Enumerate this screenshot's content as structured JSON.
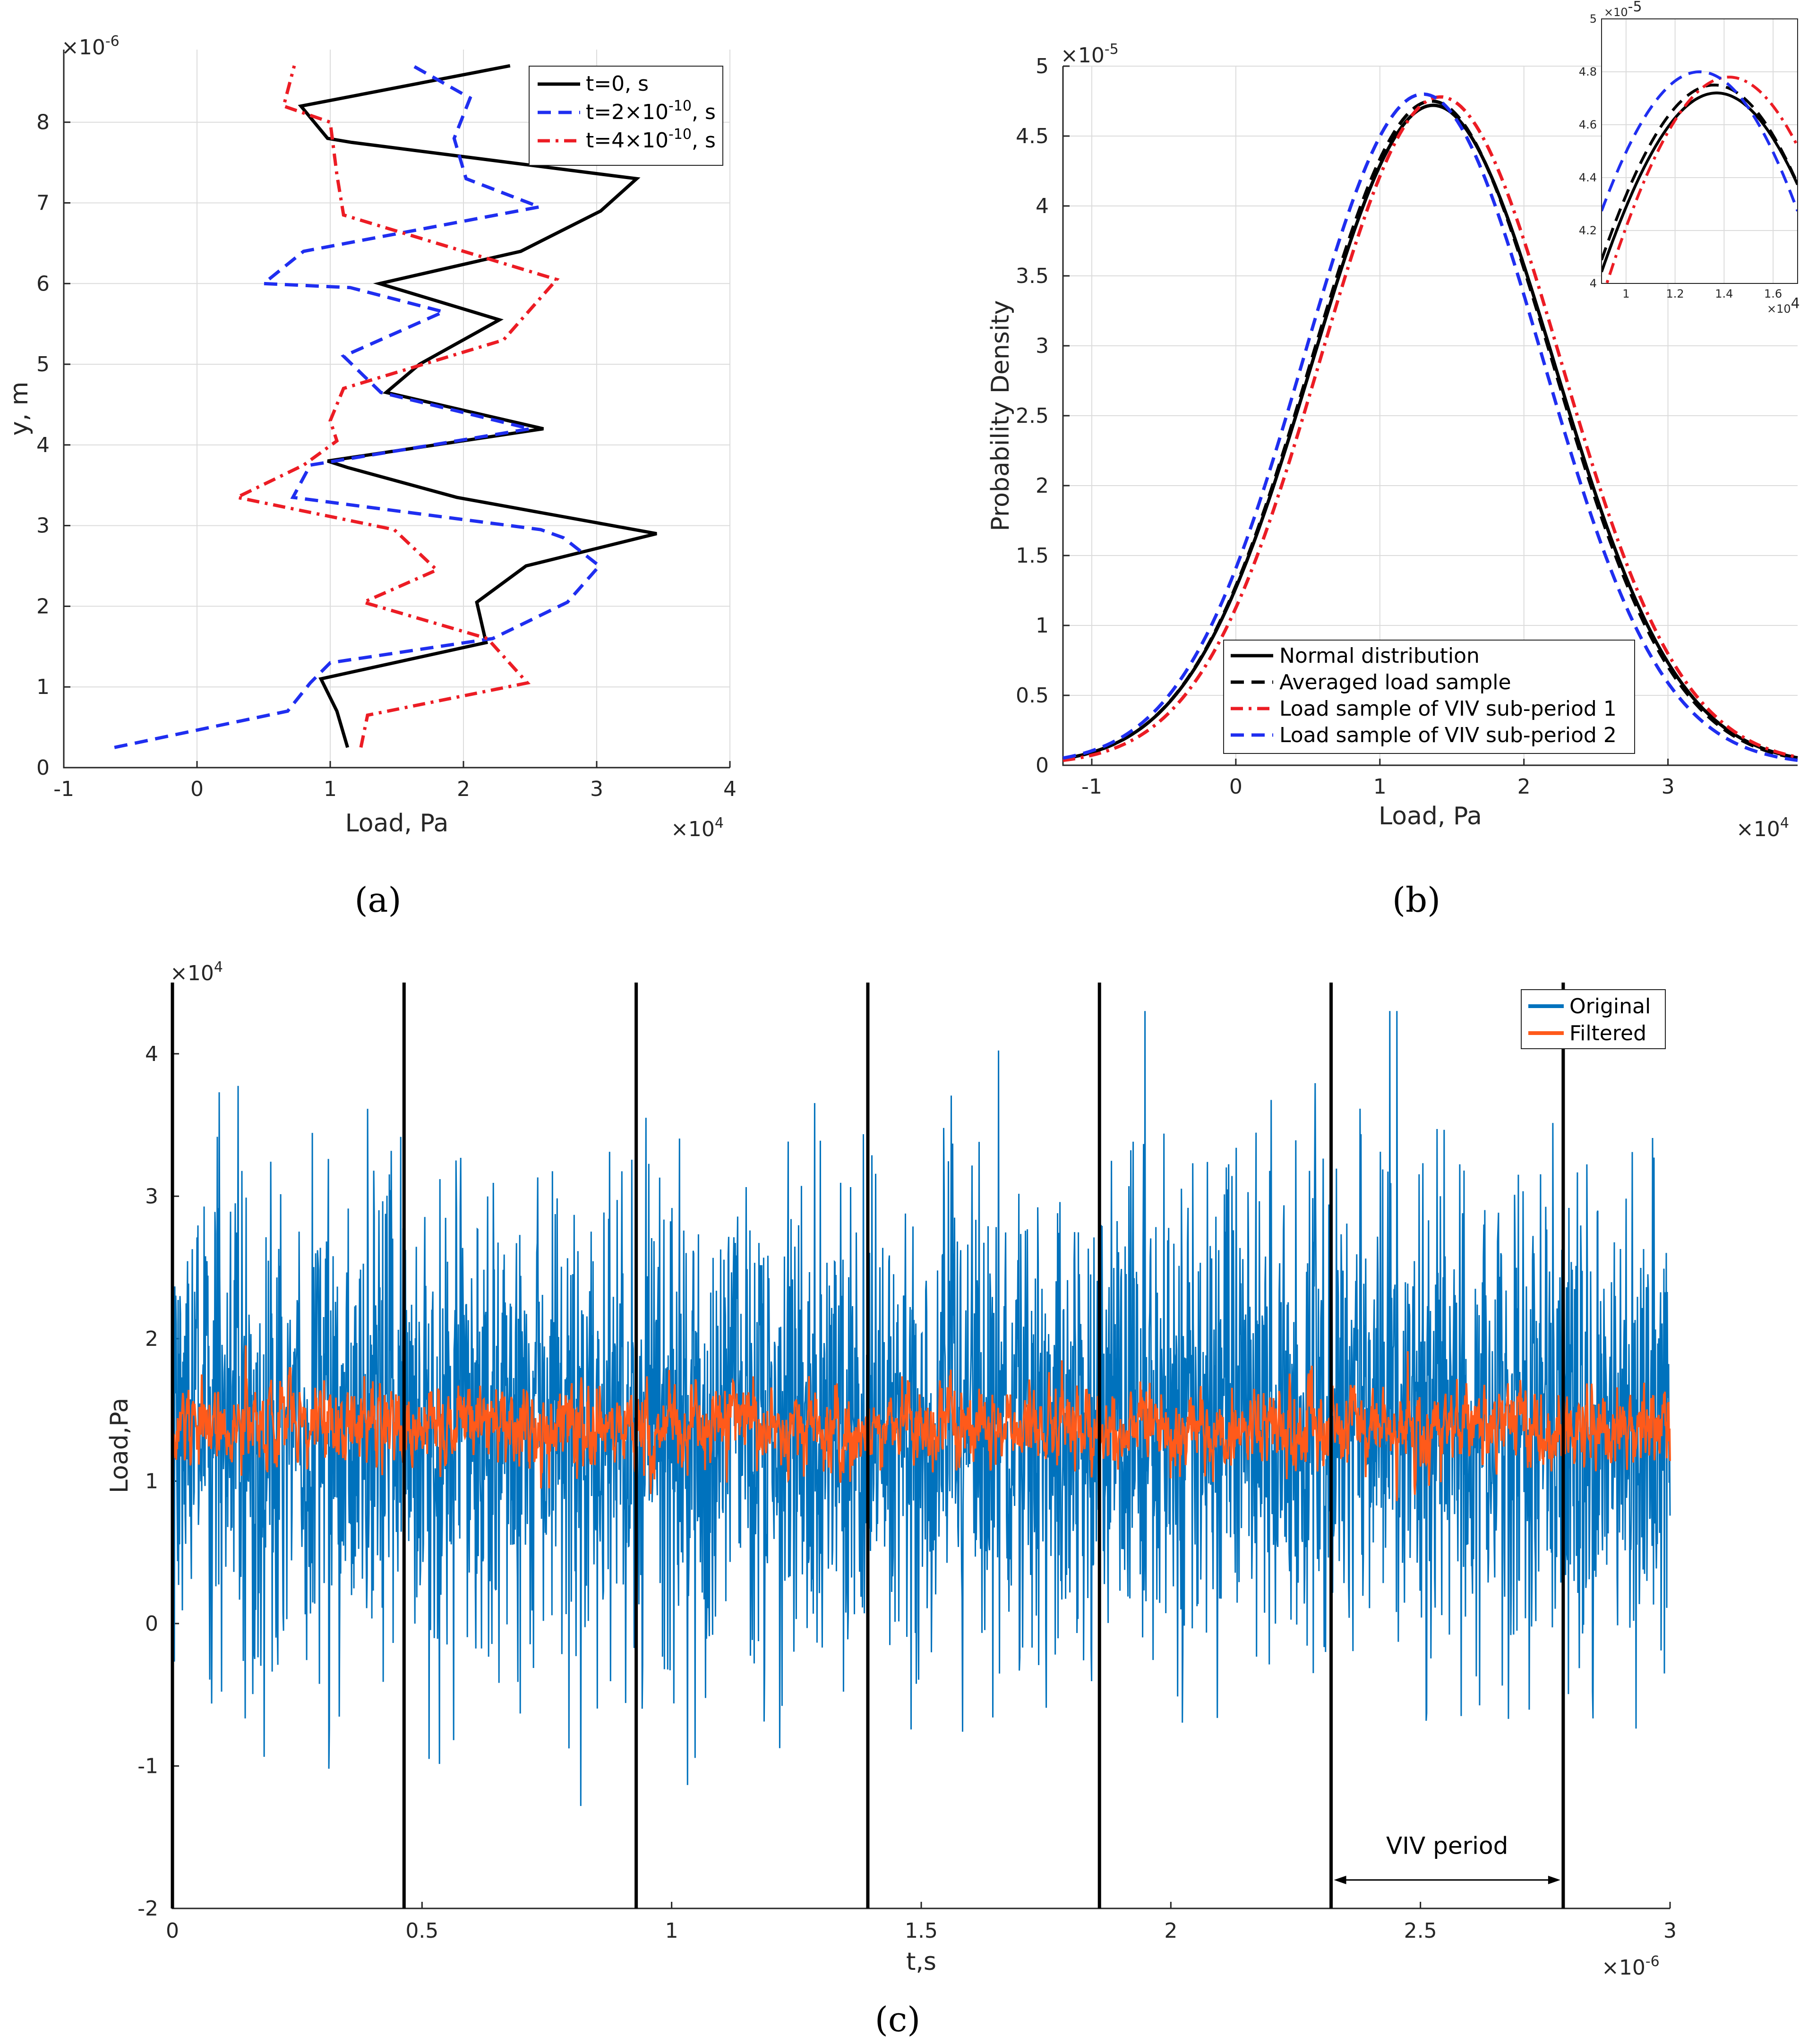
{
  "panel_labels": {
    "a": "(a)",
    "b": "(b)",
    "c": "(c)"
  },
  "colors": {
    "black": "#000000",
    "blue_dash": "#1f2ef0",
    "red_dashdot": "#ec1c24",
    "original": "#0072bd",
    "filtered": "#ff5a1a"
  },
  "chart_data": [
    {
      "id": "a",
      "type": "line",
      "orientation": "profile",
      "xlabel": "Load, Pa",
      "ylabel": "y, m",
      "x_multiplier": {
        "base": "×10",
        "exp": "4"
      },
      "y_multiplier": {
        "base": "×10",
        "exp": "-6"
      },
      "xlim": [
        -1,
        4
      ],
      "ylim": [
        0,
        8.9
      ],
      "x_ticks": [
        -1,
        0,
        1,
        2,
        3,
        4
      ],
      "x_tick_labels": [
        "-1",
        "0",
        "1",
        "2",
        "3",
        "4"
      ],
      "y_ticks": [
        0,
        1,
        2,
        3,
        4,
        5,
        6,
        7,
        8
      ],
      "y_tick_labels": [
        "0",
        "1",
        "2",
        "3",
        "4",
        "5",
        "6",
        "7",
        "8"
      ],
      "grid": true,
      "legend_position": "top-right",
      "series": [
        {
          "name": "t=0, s",
          "name_parts": [
            "t=0, s",
            "",
            ""
          ],
          "style": "solid",
          "color": "#000000",
          "x": [
            1.13,
            1.05,
            0.93,
            2.17,
            2.1,
            2.47,
            3.45,
            1.95,
            1.13,
            0.98,
            2.6,
            1.42,
            1.67,
            2.27,
            1.37,
            2.43,
            3.03,
            3.3,
            1.16,
            0.98,
            0.78,
            2.35
          ],
          "y": [
            0.25,
            0.7,
            1.1,
            1.55,
            2.05,
            2.5,
            2.9,
            3.35,
            3.72,
            3.8,
            4.2,
            4.65,
            5.0,
            5.55,
            6.0,
            6.4,
            6.9,
            7.3,
            7.75,
            7.8,
            8.2,
            8.7
          ]
        },
        {
          "name": "t=2×10^-10, s",
          "name_parts": [
            "t=2×10",
            "-10",
            ", s"
          ],
          "style": "dashed",
          "color": "#1f2ef0",
          "x": [
            -0.62,
            0.68,
            0.85,
            1.0,
            2.22,
            2.78,
            3.02,
            2.75,
            2.58,
            0.72,
            0.85,
            2.5,
            1.38,
            1.1,
            1.85,
            1.15,
            0.5,
            0.8,
            2.57,
            2.02,
            1.93,
            2.05,
            1.62
          ],
          "y": [
            0.25,
            0.7,
            1.05,
            1.3,
            1.6,
            2.05,
            2.5,
            2.85,
            2.95,
            3.35,
            3.75,
            4.2,
            4.65,
            5.1,
            5.65,
            5.95,
            6.0,
            6.4,
            6.95,
            7.3,
            7.8,
            8.3,
            8.7
          ]
        },
        {
          "name": "t=4×10^-10, s",
          "name_parts": [
            "t=4×10",
            "-10",
            ", s"
          ],
          "style": "dashdot",
          "color": "#ec1c24",
          "x": [
            1.23,
            1.28,
            2.48,
            2.18,
            1.25,
            1.8,
            1.48,
            0.3,
            0.8,
            1.05,
            1.0,
            1.1,
            2.3,
            2.7,
            1.1,
            1.05,
            1.0,
            0.65,
            0.73
          ],
          "y": [
            0.25,
            0.65,
            1.05,
            1.6,
            2.05,
            2.45,
            2.95,
            3.35,
            3.75,
            4.05,
            4.3,
            4.7,
            5.3,
            6.05,
            6.85,
            7.35,
            8.0,
            8.2,
            8.7
          ]
        }
      ]
    },
    {
      "id": "b",
      "type": "line",
      "xlabel": "Load, Pa",
      "ylabel": "Probability Density",
      "x_multiplier": {
        "base": "×10",
        "exp": "4"
      },
      "y_multiplier": {
        "base": "×10",
        "exp": "-5"
      },
      "xlim": [
        -1.2,
        3.9
      ],
      "ylim": [
        0,
        5
      ],
      "x_ticks": [
        -1,
        0,
        1,
        2,
        3
      ],
      "x_tick_labels": [
        "-1",
        "0",
        "1",
        "2",
        "3"
      ],
      "y_ticks": [
        0,
        0.5,
        1,
        1.5,
        2,
        2.5,
        3,
        3.5,
        4,
        4.5,
        5
      ],
      "y_tick_labels": [
        "0",
        "0.5",
        "1",
        "1.5",
        "2",
        "2.5",
        "3",
        "3.5",
        "4",
        "4.5",
        "5"
      ],
      "grid": true,
      "legend_position": "bottom-right",
      "series": [
        {
          "name": "Normal distribution",
          "style": "solid",
          "color": "#000000",
          "mean": 1.37,
          "sd": 0.845,
          "peak": 4.72
        },
        {
          "name": "Averaged load sample",
          "style": "dashed",
          "color": "#000000",
          "mean": 1.36,
          "sd": 0.84,
          "peak": 4.75
        },
        {
          "name": "Load sample of VIV sub-period 1",
          "style": "dashdot",
          "color": "#ec1c24",
          "mean": 1.42,
          "sd": 0.835,
          "peak": 4.78
        },
        {
          "name": "Load sample of VIV sub-period 2",
          "style": "dashed",
          "color": "#1f2ef0",
          "mean": 1.3,
          "sd": 0.83,
          "peak": 4.8
        }
      ],
      "inset": {
        "xlim": [
          0.9,
          1.7
        ],
        "ylim": [
          4.0,
          5.0
        ],
        "x_ticks": [
          1,
          1.2,
          1.4,
          1.6
        ],
        "x_tick_labels": [
          "1",
          "1.2",
          "1.4",
          "1.6"
        ],
        "y_ticks": [
          4,
          4.2,
          4.4,
          4.6,
          4.8,
          5
        ],
        "y_tick_labels": [
          "4",
          "4.2",
          "4.4",
          "4.6",
          "4.8",
          "5"
        ],
        "x_multiplier": {
          "base": "×10",
          "exp": "4"
        },
        "y_multiplier": {
          "base": "×10",
          "exp": "-5"
        }
      }
    },
    {
      "id": "c",
      "type": "line",
      "xlabel": "t,s",
      "ylabel": "Load,Pa",
      "x_multiplier": {
        "base": "×10",
        "exp": "-6"
      },
      "y_multiplier": {
        "base": "×10",
        "exp": "4"
      },
      "xlim": [
        0,
        3
      ],
      "ylim": [
        -2,
        4.5
      ],
      "x_ticks": [
        0,
        0.5,
        1,
        1.5,
        2,
        2.5,
        3
      ],
      "x_tick_labels": [
        "0",
        "0.5",
        "1",
        "1.5",
        "2",
        "2.5",
        "3"
      ],
      "y_ticks": [
        -2,
        -1,
        0,
        1,
        2,
        3,
        4
      ],
      "y_tick_labels": [
        "-2",
        "-1",
        "0",
        "1",
        "2",
        "3",
        "4"
      ],
      "legend_position": "top-right",
      "series": [
        {
          "name": "Original",
          "color": "#0072bd",
          "mean": 1.38,
          "sd": 0.8
        },
        {
          "name": "Filtered",
          "color": "#ff5a1a",
          "mean": 1.38,
          "sd": 0.17
        }
      ],
      "period_lines": [
        0,
        0.464,
        0.929,
        1.393,
        1.857,
        2.321,
        2.786
      ],
      "annotation": {
        "text": "VIV period",
        "from": 2.321,
        "to": 2.786,
        "y": -1.8
      }
    }
  ]
}
